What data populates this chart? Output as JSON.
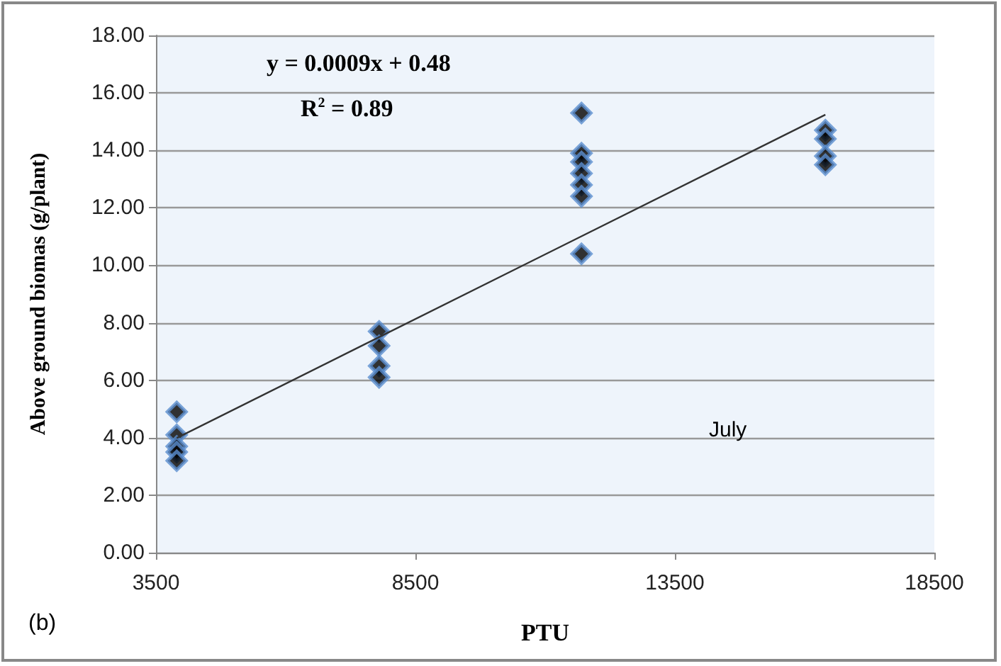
{
  "chart_data": {
    "type": "scatter",
    "xlabel": "PTU",
    "ylabel": "Above ground biomas (g/plant)",
    "xlim": [
      3500,
      18500
    ],
    "xticks": [
      3500,
      8500,
      13500,
      18500
    ],
    "ylim": [
      0,
      18
    ],
    "yticks": [
      {
        "value": 0,
        "label": "0.00"
      },
      {
        "value": 2,
        "label": "2.00"
      },
      {
        "value": 4,
        "label": "4.00"
      },
      {
        "value": 6,
        "label": "6.00"
      },
      {
        "value": 8,
        "label": "8.00"
      },
      {
        "value": 10,
        "label": "10.00"
      },
      {
        "value": 12,
        "label": "12.00"
      },
      {
        "value": 14,
        "label": "14.00"
      },
      {
        "value": 16,
        "label": "16.00"
      },
      {
        "value": 18,
        "label": "18.00"
      }
    ],
    "grid": "y",
    "marker": "diamond",
    "series": [
      {
        "color": "#000000",
        "x": [
          3900,
          3900,
          3900,
          3900,
          3900,
          7800,
          7800,
          7800,
          7800,
          11700,
          11700,
          11700,
          11700,
          11700,
          11700,
          11700,
          16400,
          16400,
          16400,
          16400
        ],
        "values": [
          4.9,
          4.1,
          3.7,
          3.5,
          3.2,
          7.7,
          7.2,
          6.5,
          6.1,
          15.3,
          13.9,
          13.6,
          13.2,
          12.8,
          12.4,
          10.4,
          14.7,
          14.4,
          13.8,
          13.5
        ]
      },
      {
        "type": "line",
        "color": "#333333",
        "x": [
          3900,
          16400
        ],
        "values": [
          3.99,
          15.24
        ],
        "marker": "none"
      }
    ],
    "annotations": [
      "y = 0.0009x + 0.48",
      "R$^{2}$ = 0.89",
      "July",
      "(b)"
    ]
  }
}
